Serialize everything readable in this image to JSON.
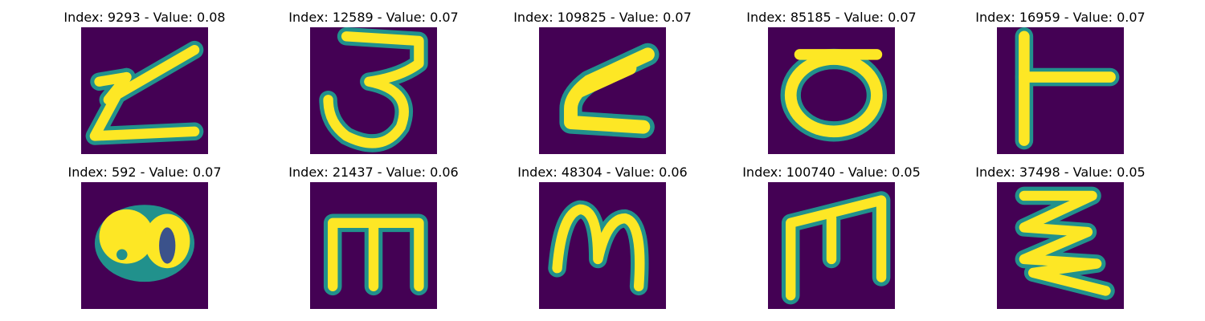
{
  "colormap": {
    "background": "#440154",
    "low": "#3b528b",
    "mid": "#21918c",
    "high_mid": "#5ec962",
    "high": "#fde725"
  },
  "panels": [
    {
      "title": "Index: 9293 - Value: 0.08",
      "glyph": "z-icon"
    },
    {
      "title": "Index: 12589 - Value: 0.07",
      "glyph": "three-icon"
    },
    {
      "title": "Index: 109825 - Value: 0.07",
      "glyph": "slanted-e-icon"
    },
    {
      "title": "Index: 85185 - Value: 0.07",
      "glyph": "o-icon"
    },
    {
      "title": "Index: 16959 - Value: 0.07",
      "glyph": "t-rotated-icon"
    },
    {
      "title": "Index: 592 - Value: 0.07",
      "glyph": "blob-icon"
    },
    {
      "title": "Index: 21437 - Value: 0.06",
      "glyph": "m-icon"
    },
    {
      "title": "Index: 48304 - Value: 0.06",
      "glyph": "m-script-icon"
    },
    {
      "title": "Index: 100740 - Value: 0.05",
      "glyph": "m-boxy-icon"
    },
    {
      "title": "Index: 37498 - Value: 0.05",
      "glyph": "zigzag-icon"
    }
  ]
}
